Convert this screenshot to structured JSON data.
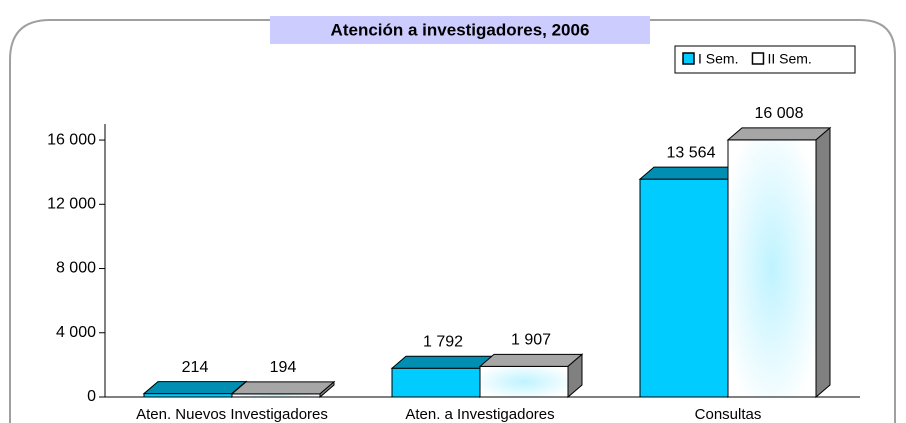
{
  "chart_data": {
    "type": "bar3d",
    "title": "Atención a investigadores, 2006",
    "categories": [
      "Aten. Nuevos Investigadores",
      "Aten. a Investigadores",
      "Consultas"
    ],
    "series": [
      {
        "name": "I Sem.",
        "color": "#00ccff",
        "values": [
          214,
          1792,
          13564
        ],
        "value_labels": [
          "214",
          "1 792",
          "13 564"
        ]
      },
      {
        "name": "II Sem.",
        "color": "#ffffff",
        "values": [
          194,
          1907,
          16008
        ],
        "value_labels": [
          "194",
          "1 907",
          "16 008"
        ]
      }
    ],
    "ylim": [
      0,
      17000
    ],
    "yticks": [
      0,
      {
        "value": 4000,
        "label": "4 000"
      },
      {
        "value": 8000,
        "label": "8 000"
      },
      {
        "value": 12000,
        "label": "12 000"
      },
      {
        "value": 16000,
        "label": "16 000"
      }
    ],
    "legend": "top-right",
    "grid": false
  }
}
